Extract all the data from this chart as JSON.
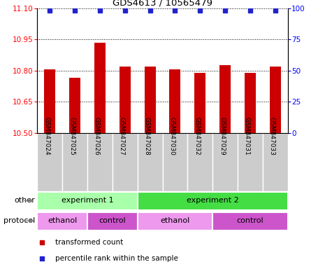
{
  "title": "GDS4613 / 10565479",
  "samples": [
    "GSM847024",
    "GSM847025",
    "GSM847026",
    "GSM847027",
    "GSM847028",
    "GSM847030",
    "GSM847032",
    "GSM847029",
    "GSM847031",
    "GSM847033"
  ],
  "bar_values": [
    10.805,
    10.765,
    10.935,
    10.82,
    10.82,
    10.805,
    10.79,
    10.825,
    10.79,
    10.82
  ],
  "percentile_values": [
    98,
    98,
    98,
    98,
    98,
    98,
    98,
    98,
    98,
    98
  ],
  "ylim_left": [
    10.5,
    11.1
  ],
  "ylim_right": [
    0,
    100
  ],
  "yticks_left": [
    10.5,
    10.65,
    10.8,
    10.95,
    11.1
  ],
  "yticks_right": [
    0,
    25,
    50,
    75,
    100
  ],
  "bar_color": "#cc0000",
  "dot_color": "#2222cc",
  "background_color": "#ffffff",
  "other_label": "other",
  "protocol_label": "protocol",
  "sample_bg_color": "#cccccc",
  "groups_other": [
    {
      "label": "experiment 1",
      "start": 0,
      "end": 4,
      "color": "#aaffaa"
    },
    {
      "label": "experiment 2",
      "start": 4,
      "end": 10,
      "color": "#44dd44"
    }
  ],
  "groups_protocol": [
    {
      "label": "ethanol",
      "start": 0,
      "end": 2,
      "color": "#ee99ee"
    },
    {
      "label": "control",
      "start": 2,
      "end": 4,
      "color": "#cc55cc"
    },
    {
      "label": "ethanol",
      "start": 4,
      "end": 7,
      "color": "#ee99ee"
    },
    {
      "label": "control",
      "start": 7,
      "end": 10,
      "color": "#cc55cc"
    }
  ],
  "legend_items": [
    {
      "label": "transformed count",
      "color": "#cc0000"
    },
    {
      "label": "percentile rank within the sample",
      "color": "#2222cc"
    }
  ]
}
